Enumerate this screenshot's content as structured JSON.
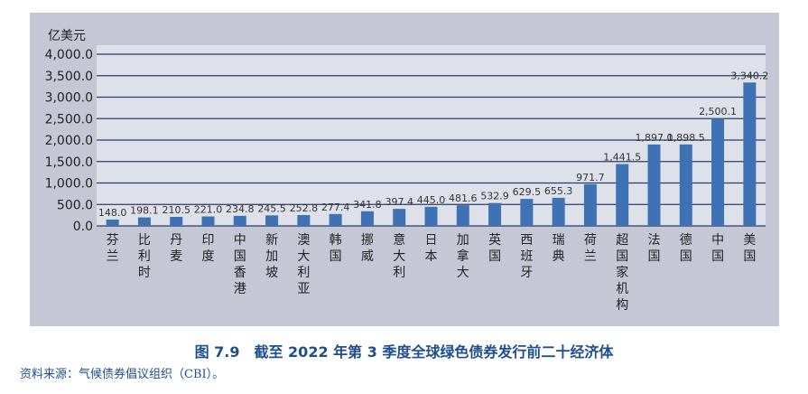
{
  "chart_data": {
    "type": "bar",
    "ylabel": "亿美元",
    "ylim": [
      0,
      4000
    ],
    "yticks": [
      "0.0",
      "500.0",
      "1,000.0",
      "1,500.0",
      "2,000.0",
      "2,500.0",
      "3,000.0",
      "3,500.0",
      "4,000.0"
    ],
    "grid": true,
    "categories": [
      "芬兰",
      "比利时",
      "丹麦",
      "印度",
      "中国香港",
      "新加坡",
      "澳大利亚",
      "韩国",
      "挪威",
      "意大利",
      "日本",
      "加拿大",
      "英国",
      "西班牙",
      "瑞典",
      "荷兰",
      "超国家机构",
      "法国",
      "德国",
      "中国",
      "美国"
    ],
    "values": [
      148.0,
      198.1,
      210.5,
      221.0,
      234.8,
      245.5,
      252.8,
      277.4,
      341.8,
      397.4,
      445.0,
      481.6,
      532.9,
      629.5,
      655.3,
      971.7,
      1441.5,
      1897.0,
      1898.5,
      2500.1,
      3340.2
    ],
    "labels": [
      "148.0",
      "198.1",
      "210.5",
      "221.0",
      "234.8",
      "245.5",
      "252.8",
      "277.4",
      "341.8",
      "397.4",
      "445.0",
      "481.6",
      "532.9",
      "629.5",
      "655.3",
      "971.7",
      "1,441.5",
      "1,897.0",
      "1,898.5",
      "2,500.1",
      "3,340.2"
    ],
    "bar_color": "#3f72b5"
  },
  "caption": "图 7.9　截至 2022 年第 3 季度全球绿色债券发行前二十经济体",
  "source": "资料来源：气候债券倡议组织（CBI）。"
}
